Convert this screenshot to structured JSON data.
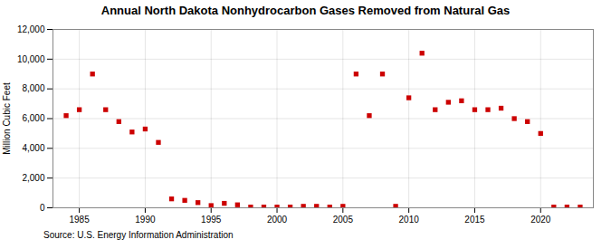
{
  "chart_data": {
    "type": "scatter",
    "title": "Annual North Dakota Nonhydrocarbon Gases Removed from Natural Gas",
    "ylabel": "Million Cubic Feet",
    "source": "Source: U.S. Energy Information Administration",
    "color": "#cc0000",
    "marker": "square",
    "grid": true,
    "xlim": [
      1983,
      2024
    ],
    "xticks": [
      1985,
      1990,
      1995,
      2000,
      2005,
      2010,
      2015,
      2020
    ],
    "ylim": [
      0,
      12000
    ],
    "yticks": [
      0,
      {
        "value": 2000,
        "label": "2,000"
      },
      {
        "value": 4000,
        "label": "4,000"
      },
      {
        "value": 6000,
        "label": "6,000"
      },
      {
        "value": 8000,
        "label": "8,000"
      },
      {
        "value": 10000,
        "label": "10,000"
      },
      {
        "value": 12000,
        "label": "12,000"
      }
    ],
    "x": [
      1984,
      1985,
      1986,
      1987,
      1988,
      1989,
      1990,
      1991,
      1992,
      1993,
      1994,
      1995,
      1996,
      1997,
      1998,
      1999,
      2000,
      2001,
      2002,
      2003,
      2004,
      2005,
      2006,
      2007,
      2008,
      2009,
      2010,
      2011,
      2012,
      2013,
      2014,
      2015,
      2016,
      2017,
      2018,
      2019,
      2020,
      2021,
      2022,
      2023
    ],
    "values": [
      6200,
      6600,
      9000,
      6600,
      5800,
      5100,
      5300,
      4400,
      600,
      500,
      350,
      150,
      300,
      200,
      50,
      50,
      50,
      50,
      100,
      100,
      50,
      100,
      9000,
      6200,
      9000,
      100,
      7400,
      10400,
      6600,
      7100,
      7200,
      6600,
      6600,
      6700,
      6000,
      5800,
      5000,
      50,
      50,
      50
    ]
  }
}
